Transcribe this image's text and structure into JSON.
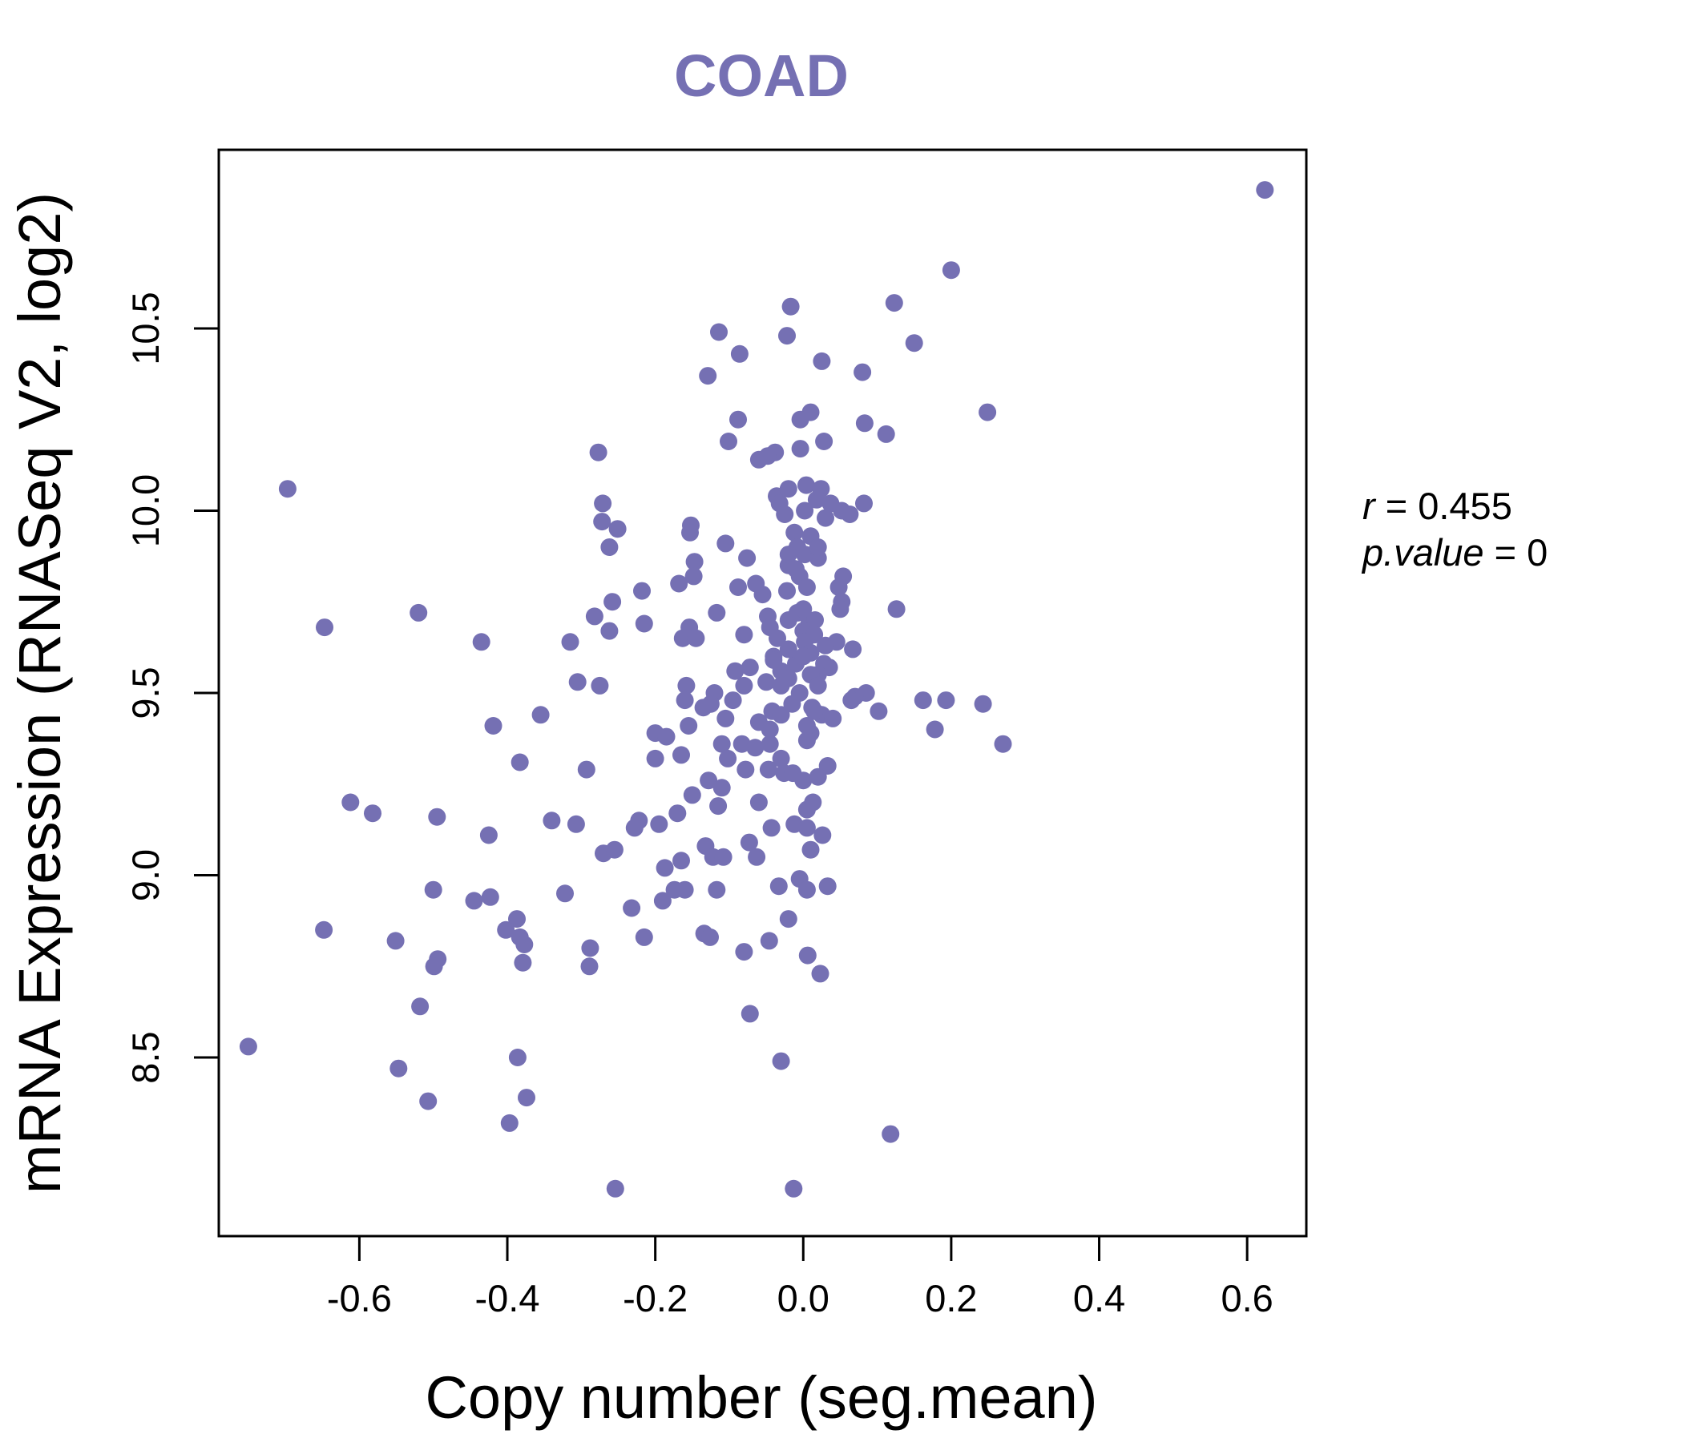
{
  "chart_data": {
    "type": "scatter",
    "title": "COAD",
    "xlabel": "Copy number (seg.mean)",
    "ylabel": "mRNA Expression (RNASeq V2, log2)",
    "xlim": [
      -0.79,
      0.68
    ],
    "ylim": [
      8.01,
      10.99
    ],
    "x_ticks": [
      -0.6,
      -0.4,
      -0.2,
      0.0,
      0.2,
      0.4,
      0.6
    ],
    "x_tick_labels": [
      "-0.6",
      "-0.4",
      "-0.2",
      "0.0",
      "0.2",
      "0.4",
      "0.6"
    ],
    "y_ticks": [
      8.5,
      9.0,
      9.5,
      10.0,
      10.5
    ],
    "y_tick_labels": [
      "8.5",
      "9.0",
      "9.5",
      "10.0",
      "10.5"
    ],
    "point_color": "#7570B3",
    "grid": false,
    "legend": "none",
    "annotations": {
      "r_label": "r",
      "r_eq": " = 0.455",
      "p_label": "p.value",
      "p_eq": " = 0"
    },
    "points": [
      [
        0.624,
        10.88
      ],
      [
        0.2,
        10.66
      ],
      [
        0.123,
        10.57
      ],
      [
        -0.017,
        10.56
      ],
      [
        -0.114,
        10.49
      ],
      [
        -0.022,
        10.48
      ],
      [
        0.15,
        10.46
      ],
      [
        -0.086,
        10.43
      ],
      [
        0.025,
        10.41
      ],
      [
        -0.129,
        10.37
      ],
      [
        0.08,
        10.38
      ],
      [
        0.249,
        10.27
      ],
      [
        -0.088,
        10.25
      ],
      [
        0.01,
        10.27
      ],
      [
        -0.004,
        10.25
      ],
      [
        0.083,
        10.24
      ],
      [
        0.112,
        10.21
      ],
      [
        -0.101,
        10.19
      ],
      [
        0.028,
        10.19
      ],
      [
        -0.277,
        10.16
      ],
      [
        -0.038,
        10.16
      ],
      [
        -0.004,
        10.17
      ],
      [
        -0.697,
        10.06
      ],
      [
        -0.06,
        10.14
      ],
      [
        -0.048,
        10.15
      ],
      [
        -0.036,
        10.04
      ],
      [
        -0.02,
        10.06
      ],
      [
        0.004,
        10.07
      ],
      [
        0.024,
        10.06
      ],
      [
        0.037,
        10.02
      ],
      [
        -0.271,
        10.02
      ],
      [
        -0.032,
        10.02
      ],
      [
        0.002,
        10.0
      ],
      [
        0.018,
        10.03
      ],
      [
        0.052,
        10.0
      ],
      [
        0.063,
        9.99
      ],
      [
        0.082,
        10.02
      ],
      [
        -0.272,
        9.97
      ],
      [
        -0.025,
        9.99
      ],
      [
        -0.251,
        9.95
      ],
      [
        -0.152,
        9.96
      ],
      [
        -0.153,
        9.94
      ],
      [
        -0.012,
        9.94
      ],
      [
        0.01,
        9.93
      ],
      [
        -0.105,
        9.91
      ],
      [
        -0.262,
        9.9
      ],
      [
        -0.008,
        9.9
      ],
      [
        -0.147,
        9.86
      ],
      [
        -0.076,
        9.87
      ],
      [
        0.002,
        9.88
      ],
      [
        0.02,
        9.87
      ],
      [
        -0.02,
        9.85
      ],
      [
        -0.148,
        9.82
      ],
      [
        -0.168,
        9.8
      ],
      [
        -0.005,
        9.82
      ],
      [
        0.054,
        9.82
      ],
      [
        -0.064,
        9.8
      ],
      [
        -0.088,
        9.79
      ],
      [
        0.005,
        9.79
      ],
      [
        0.048,
        9.79
      ],
      [
        -0.218,
        9.78
      ],
      [
        -0.055,
        9.77
      ],
      [
        -0.022,
        9.78
      ],
      [
        0.052,
        9.75
      ],
      [
        -0.258,
        9.75
      ],
      [
        0.126,
        9.73
      ],
      [
        -0.52,
        9.72
      ],
      [
        -0.282,
        9.71
      ],
      [
        -0.117,
        9.72
      ],
      [
        -0.048,
        9.71
      ],
      [
        -0.008,
        9.72
      ],
      [
        0.008,
        9.69
      ],
      [
        0.05,
        9.73
      ],
      [
        0.016,
        9.7
      ],
      [
        -0.647,
        9.68
      ],
      [
        -0.215,
        9.69
      ],
      [
        -0.154,
        9.68
      ],
      [
        -0.045,
        9.68
      ],
      [
        -0.262,
        9.67
      ],
      [
        -0.08,
        9.66
      ],
      [
        0.0,
        9.67
      ],
      [
        0.015,
        9.66
      ],
      [
        -0.435,
        9.64
      ],
      [
        -0.315,
        9.64
      ],
      [
        -0.163,
        9.65
      ],
      [
        -0.145,
        9.65
      ],
      [
        -0.035,
        9.65
      ],
      [
        0.002,
        9.64
      ],
      [
        0.045,
        9.64
      ],
      [
        0.067,
        9.62
      ],
      [
        -0.04,
        9.6
      ],
      [
        0.01,
        9.61
      ],
      [
        -0.072,
        9.57
      ],
      [
        -0.092,
        9.56
      ],
      [
        -0.03,
        9.56
      ],
      [
        0.028,
        9.58
      ],
      [
        0.035,
        9.57
      ],
      [
        -0.305,
        9.53
      ],
      [
        -0.275,
        9.52
      ],
      [
        -0.158,
        9.52
      ],
      [
        -0.12,
        9.5
      ],
      [
        -0.08,
        9.52
      ],
      [
        -0.05,
        9.53
      ],
      [
        -0.02,
        9.54
      ],
      [
        0.02,
        9.55
      ],
      [
        0.085,
        9.5
      ],
      [
        -0.16,
        9.48
      ],
      [
        -0.125,
        9.47
      ],
      [
        -0.095,
        9.48
      ],
      [
        0.07,
        9.49
      ],
      [
        0.065,
        9.48
      ],
      [
        0.162,
        9.48
      ],
      [
        0.193,
        9.48
      ],
      [
        0.243,
        9.47
      ],
      [
        -0.355,
        9.44
      ],
      [
        -0.135,
        9.46
      ],
      [
        -0.105,
        9.43
      ],
      [
        -0.042,
        9.45
      ],
      [
        -0.03,
        9.44
      ],
      [
        0.012,
        9.46
      ],
      [
        0.025,
        9.44
      ],
      [
        0.102,
        9.45
      ],
      [
        -0.419,
        9.41
      ],
      [
        -0.155,
        9.41
      ],
      [
        -0.06,
        9.42
      ],
      [
        -0.045,
        9.4
      ],
      [
        0.01,
        9.39
      ],
      [
        0.178,
        9.4
      ],
      [
        -0.2,
        9.39
      ],
      [
        -0.185,
        9.38
      ],
      [
        -0.11,
        9.36
      ],
      [
        -0.083,
        9.36
      ],
      [
        -0.065,
        9.35
      ],
      [
        -0.045,
        9.36
      ],
      [
        0.005,
        9.37
      ],
      [
        0.27,
        9.36
      ],
      [
        -0.165,
        9.33
      ],
      [
        -0.2,
        9.32
      ],
      [
        -0.102,
        9.32
      ],
      [
        -0.03,
        9.32
      ],
      [
        0.033,
        9.3
      ],
      [
        -0.383,
        9.31
      ],
      [
        -0.293,
        9.29
      ],
      [
        -0.078,
        9.29
      ],
      [
        -0.047,
        9.29
      ],
      [
        -0.026,
        9.28
      ],
      [
        -0.014,
        9.28
      ],
      [
        -0.128,
        9.26
      ],
      [
        0.0,
        9.26
      ],
      [
        0.02,
        9.27
      ],
      [
        -0.11,
        9.24
      ],
      [
        -0.15,
        9.22
      ],
      [
        -0.06,
        9.2
      ],
      [
        0.013,
        9.2
      ],
      [
        -0.612,
        9.2
      ],
      [
        -0.582,
        9.17
      ],
      [
        -0.495,
        9.16
      ],
      [
        -0.17,
        9.17
      ],
      [
        -0.115,
        9.19
      ],
      [
        0.005,
        9.18
      ],
      [
        -0.34,
        9.15
      ],
      [
        -0.222,
        9.15
      ],
      [
        -0.228,
        9.13
      ],
      [
        -0.195,
        9.14
      ],
      [
        -0.307,
        9.14
      ],
      [
        -0.043,
        9.13
      ],
      [
        -0.012,
        9.14
      ],
      [
        0.005,
        9.13
      ],
      [
        -0.425,
        9.11
      ],
      [
        0.026,
        9.11
      ],
      [
        -0.132,
        9.08
      ],
      [
        -0.073,
        9.09
      ],
      [
        0.01,
        9.07
      ],
      [
        -0.27,
        9.06
      ],
      [
        -0.255,
        9.07
      ],
      [
        -0.122,
        9.05
      ],
      [
        -0.108,
        9.05
      ],
      [
        -0.063,
        9.05
      ],
      [
        -0.165,
        9.04
      ],
      [
        -0.187,
        9.02
      ],
      [
        -0.005,
        8.99
      ],
      [
        -0.5,
        8.96
      ],
      [
        -0.174,
        8.96
      ],
      [
        -0.16,
        8.96
      ],
      [
        -0.117,
        8.96
      ],
      [
        -0.033,
        8.97
      ],
      [
        0.005,
        8.96
      ],
      [
        0.033,
        8.97
      ],
      [
        -0.445,
        8.93
      ],
      [
        -0.423,
        8.94
      ],
      [
        -0.322,
        8.95
      ],
      [
        -0.19,
        8.93
      ],
      [
        -0.232,
        8.91
      ],
      [
        -0.02,
        8.88
      ],
      [
        -0.648,
        8.85
      ],
      [
        -0.387,
        8.88
      ],
      [
        -0.402,
        8.85
      ],
      [
        -0.383,
        8.83
      ],
      [
        -0.134,
        8.84
      ],
      [
        -0.126,
        8.83
      ],
      [
        -0.215,
        8.83
      ],
      [
        -0.046,
        8.82
      ],
      [
        -0.551,
        8.82
      ],
      [
        -0.377,
        8.81
      ],
      [
        -0.288,
        8.8
      ],
      [
        -0.08,
        8.79
      ],
      [
        0.006,
        8.78
      ],
      [
        -0.494,
        8.77
      ],
      [
        -0.499,
        8.75
      ],
      [
        -0.379,
        8.76
      ],
      [
        -0.289,
        8.75
      ],
      [
        0.023,
        8.73
      ],
      [
        -0.518,
        8.64
      ],
      [
        -0.072,
        8.62
      ],
      [
        -0.75,
        8.53
      ],
      [
        -0.386,
        8.5
      ],
      [
        -0.03,
        8.49
      ],
      [
        -0.547,
        8.47
      ],
      [
        -0.507,
        8.38
      ],
      [
        -0.374,
        8.39
      ],
      [
        -0.397,
        8.32
      ],
      [
        0.118,
        8.29
      ],
      [
        -0.254,
        8.14
      ],
      [
        -0.013,
        8.14
      ],
      [
        -0.01,
        9.58
      ],
      [
        -0.02,
        9.62
      ],
      [
        0.0,
        9.6
      ],
      [
        0.01,
        9.55
      ],
      [
        0.03,
        9.63
      ],
      [
        -0.005,
        9.5
      ],
      [
        0.015,
        9.45
      ],
      [
        -0.015,
        9.47
      ],
      [
        0.005,
        9.41
      ],
      [
        -0.03,
        9.52
      ],
      [
        0.02,
        9.52
      ],
      [
        0.0,
        9.73
      ],
      [
        -0.02,
        9.88
      ],
      [
        0.02,
        9.9
      ],
      [
        -0.01,
        9.84
      ],
      [
        0.03,
        9.98
      ],
      [
        -0.04,
        9.59
      ],
      [
        -0.02,
        9.7
      ],
      [
        0.04,
        9.43
      ]
    ]
  }
}
